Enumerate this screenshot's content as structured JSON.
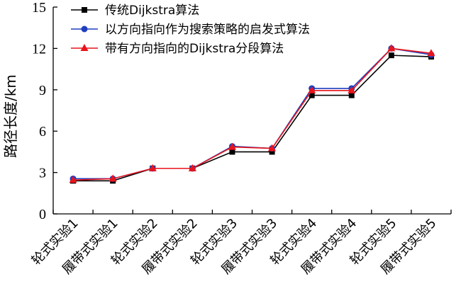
{
  "chart_data": {
    "type": "line",
    "title": "",
    "xlabel": "",
    "ylabel": "路径长度/km",
    "ylim": [
      0,
      15
    ],
    "yticks": [
      0,
      3,
      6,
      9,
      12,
      15
    ],
    "grid": false,
    "legend_position": "top-left",
    "categories": [
      "轮式实验1",
      "履带式实验1",
      "轮式实验2",
      "履带式实验2",
      "轮式实验3",
      "履带式实验3",
      "轮式实验4",
      "履带式实验4",
      "轮式实验5",
      "履带式实验5"
    ],
    "series": [
      {
        "name": "传统Dijkstra算法",
        "color": "#000000",
        "marker": "square",
        "values": [
          2.4,
          2.4,
          3.3,
          3.3,
          4.5,
          4.5,
          8.6,
          8.6,
          11.5,
          11.4
        ]
      },
      {
        "name": "以方向指向作为搜索策略的启发式算法",
        "color": "#1f3fbf",
        "marker": "circle",
        "values": [
          2.55,
          2.55,
          3.3,
          3.3,
          4.9,
          4.75,
          9.1,
          9.1,
          12.0,
          11.55
        ]
      },
      {
        "name": "带有方向指向的Dijkstra分段算法",
        "color": "#e8141c",
        "marker": "triangle",
        "values": [
          2.45,
          2.55,
          3.3,
          3.3,
          4.85,
          4.75,
          8.95,
          8.95,
          12.0,
          11.65
        ]
      }
    ]
  }
}
